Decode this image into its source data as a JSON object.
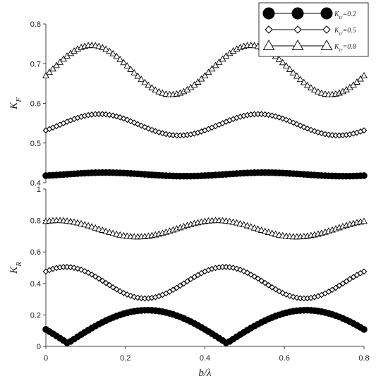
{
  "chart_data": [
    {
      "type": "scatter",
      "panel": "top",
      "title": "",
      "xlabel": "",
      "ylabel": "K_F",
      "xlim": [
        0,
        0.8
      ],
      "ylim": [
        0.4,
        0.8
      ],
      "yticks": [
        "0.4",
        "0.5",
        "0.6",
        "0.7",
        "0.8"
      ],
      "xticks": [],
      "grid": false,
      "legend": "top-right",
      "series": [
        {
          "name": "K_tr=0.2",
          "marker": "circle-filled",
          "kind": "sine",
          "offset": 0.421,
          "amplitude": 0.0045,
          "period": 0.4,
          "phase": 0.05
        },
        {
          "name": "K_tr=0.5",
          "marker": "diamond-open",
          "kind": "sine",
          "offset": 0.546,
          "amplitude": 0.027,
          "period": 0.4,
          "phase": 0.035
        },
        {
          "name": "K_tr=0.8",
          "marker": "triangle-open",
          "kind": "sine",
          "offset": 0.684,
          "amplitude": 0.062,
          "period": 0.4,
          "phase": 0.015
        }
      ]
    },
    {
      "type": "scatter",
      "panel": "bottom",
      "title": "",
      "xlabel": "b/λ",
      "ylabel": "K_R",
      "xlim": [
        0,
        0.8
      ],
      "ylim": [
        0,
        1
      ],
      "yticks": [
        "0",
        "0.2",
        "0.4",
        "0.6",
        "0.8",
        "1"
      ],
      "xticks": [
        "0",
        "0.2",
        "0.4",
        "0.6",
        "0.8"
      ],
      "grid": false,
      "series": [
        {
          "name": "K_tr=0.2",
          "marker": "circle-filled",
          "kind": "abs-sine",
          "amplitude": 0.21,
          "period": 0.4,
          "zero": 0.055,
          "offset": 0.02
        },
        {
          "name": "K_tr=0.5",
          "marker": "diamond-open",
          "kind": "sine",
          "offset": 0.405,
          "amplitude": 0.1,
          "period": 0.4,
          "phase": -0.05
        },
        {
          "name": "K_tr=0.8",
          "marker": "triangle-open",
          "kind": "sine",
          "offset": 0.748,
          "amplitude": 0.052,
          "period": 0.4,
          "phase": -0.07
        }
      ]
    }
  ],
  "legend": {
    "entries": [
      "K_tr=0.2",
      "K_tr=0.5",
      "K_tr=0.8"
    ]
  },
  "colors": {
    "ink": "#000000",
    "axis": "#444444",
    "text": "#222222"
  }
}
